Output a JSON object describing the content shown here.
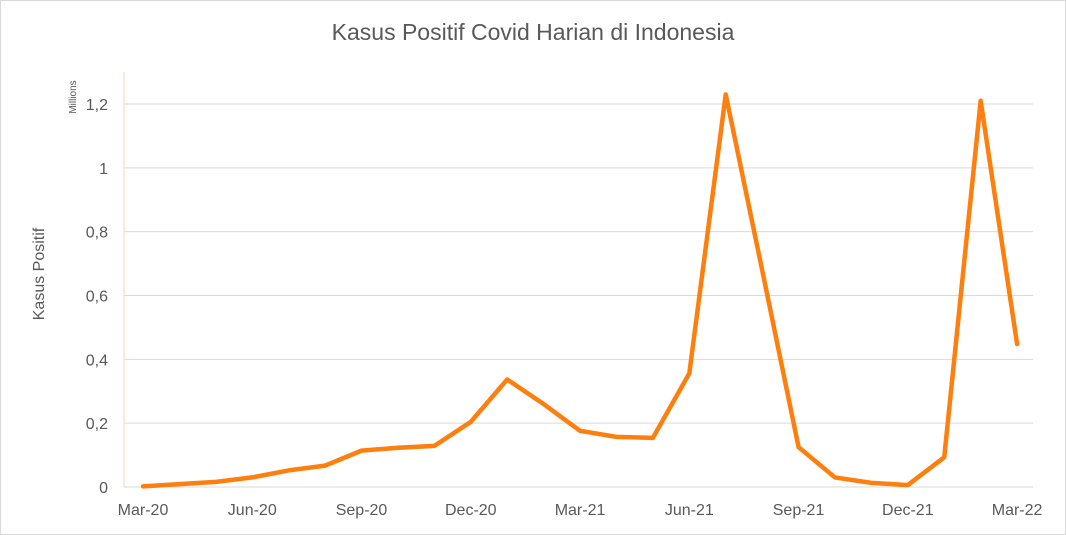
{
  "chart_data": {
    "type": "line",
    "title": "Kasus Positif Covid Harian di Indonesia",
    "ylabel": "Kasus Positif",
    "yunit": "Millions",
    "xlabel": "",
    "ylim": [
      0,
      1.3
    ],
    "yticks": [
      0,
      0.2,
      0.4,
      0.6,
      0.8,
      1,
      1.2
    ],
    "ytick_labels": [
      "0",
      "0,2",
      "0,4",
      "0,6",
      "0,8",
      "1",
      "1,2"
    ],
    "xtick_labels": [
      "Mar-20",
      "Jun-20",
      "Sep-20",
      "Dec-20",
      "Mar-21",
      "Jun-21",
      "Sep-21",
      "Dec-21",
      "Mar-22"
    ],
    "grid": true,
    "line_color": "#ff7f0e",
    "x": [
      "Mar-20",
      "Apr-20",
      "May-20",
      "Jun-20",
      "Jul-20",
      "Aug-20",
      "Sep-20",
      "Oct-20",
      "Nov-20",
      "Dec-20",
      "Jan-21",
      "Feb-21",
      "Mar-21",
      "Apr-21",
      "May-21",
      "Jun-21",
      "Jul-21",
      "Aug-21",
      "Sep-21",
      "Oct-21",
      "Nov-21",
      "Dec-21",
      "Jan-22",
      "Feb-22",
      "Mar-22"
    ],
    "series": [
      {
        "values": [
          0.002,
          0.009,
          0.016,
          0.03,
          0.052,
          0.067,
          0.114,
          0.123,
          0.129,
          0.204,
          0.337,
          0.26,
          0.176,
          0.157,
          0.154,
          0.356,
          1.23,
          0.68,
          0.125,
          0.03,
          0.013,
          0.006,
          0.093,
          1.21,
          0.448
        ]
      }
    ]
  }
}
